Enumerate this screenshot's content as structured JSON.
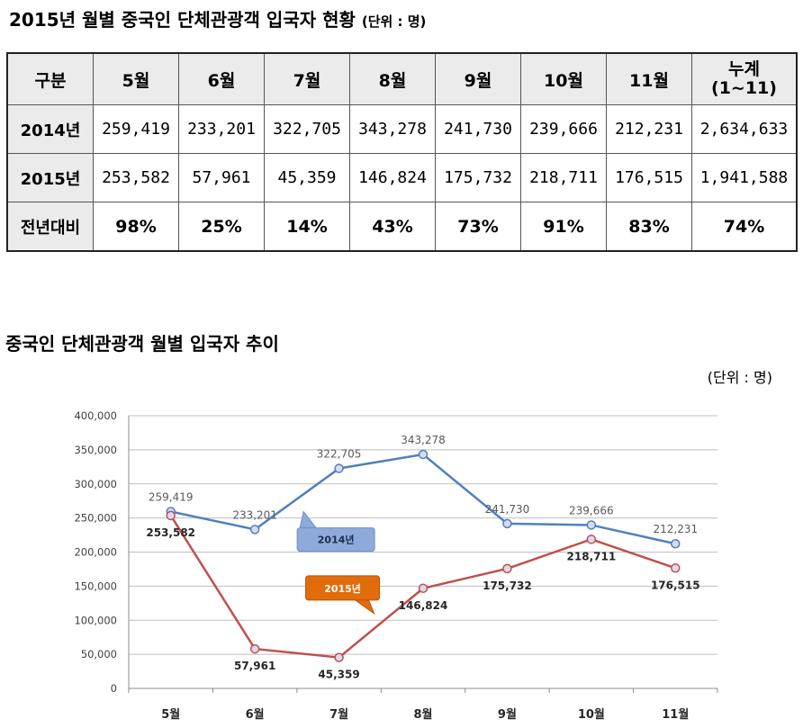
{
  "title": "2015년 월별 중국인 단체관광객 입국자 현황",
  "title_unit": "(단위 : 명)",
  "table": {
    "corner": "구분",
    "headers": [
      "5월",
      "6월",
      "7월",
      "8월",
      "9월",
      "10월",
      "11월"
    ],
    "cum_header_line1": "누계",
    "cum_header_line2": "(1~11)",
    "rows": [
      {
        "label": "2014년",
        "cells": [
          "259,419",
          "233,201",
          "322,705",
          "343,278",
          "241,730",
          "239,666",
          "212,231",
          "2,634,633"
        ]
      },
      {
        "label": "2015년",
        "cells": [
          "253,582",
          "57,961",
          "45,359",
          "146,824",
          "175,732",
          "218,711",
          "176,515",
          "1,941,588"
        ]
      },
      {
        "label": "전년대비",
        "cells": [
          "98%",
          "25%",
          "14%",
          "43%",
          "73%",
          "91%",
          "83%",
          "74%"
        ]
      }
    ]
  },
  "chart_title": "중국인 단체관광객 월별 입국자 추이",
  "chart_unit": "(단위 : 명)",
  "chart_data": {
    "type": "line",
    "categories": [
      "5월",
      "6월",
      "7월",
      "8월",
      "9월",
      "10월",
      "11월"
    ],
    "ylim": [
      0,
      400000
    ],
    "yticks": [
      "0",
      "50,000",
      "100,000",
      "150,000",
      "200,000",
      "250,000",
      "300,000",
      "350,000",
      "400,000"
    ],
    "grid": true,
    "series": [
      {
        "name": "2014년",
        "color": "#4f81bd",
        "values": [
          259419,
          233201,
          322705,
          343278,
          241730,
          239666,
          212231
        ],
        "labels": [
          "259,419",
          "233,201",
          "322,705",
          "343,278",
          "241,730",
          "239,666",
          "212,231"
        ]
      },
      {
        "name": "2015년",
        "color": "#c0504d",
        "values": [
          253582,
          57961,
          45359,
          146824,
          175732,
          218711,
          176515
        ],
        "labels": [
          "253,582",
          "57,961",
          "45,359",
          "146,824",
          "175,732",
          "218,711",
          "176,515"
        ]
      }
    ],
    "callout_colors": [
      "#8eaadb",
      "#e36c0a"
    ]
  }
}
